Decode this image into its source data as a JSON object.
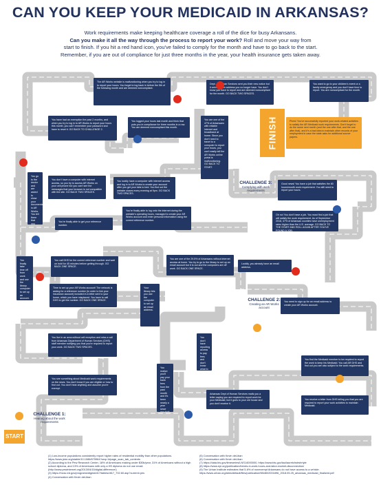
{
  "title": "CAN YOU KEEP YOUR MEDICAID IN ARKANSAS?",
  "intro": {
    "line1": "Work requirements make keeping healthcare coverage a roll of the dice for busy Arkansans.",
    "line2_bold": "Can you make it all the way through the process to report your work?",
    "line2_rest": " Roll and move your way from",
    "line3": "start to finish. If you hit a red hand icon, you've failed to comply for the month and have to go back to the start.",
    "line4": "Remember, if you are out of compliance for just three months in the year, your health insurance gets taken away."
  },
  "labels": {
    "start": "START",
    "finish": "FINISH",
    "challenge1_title": "CHALLENGE 1:",
    "challenge1_sub": "Hearing about the work requirements",
    "challenge2_title": "CHALLENGE 2:",
    "challenge2_sub": "Creating an AR Works account",
    "challenge3_title": "CHALLENGE 3:",
    "challenge3_sub": "Complying with work requirements"
  },
  "cards": {
    "c1": "The AR Works website is malfunctioning when you try to log in to report your hours. You forget to log back in before the 5th of the following month and are deemed noncompliant.",
    "c2": "Dept. of Human Services sent you their new notice but it arrived at an address you no longer have. You don't know you have to report and are deemed noncompliant for the month. GO BACK TWO SPACES.",
    "c3": "You want to go to your children's event or a family emergency and you don't have time to report. You are noncompliant for the month.",
    "c4": "You have had an exemption the past 2 months, and when you try to log in to AR Works to report your hours this month, you can't remember your password and have to reset it. GO BACK TO CHALLENGE 2.",
    "c5": "You logged your hours last month and think that puts you in compliance for three months in a row. You are deemed noncompliant this month.",
    "c6": "You are one of the 47% of Arkansans with reliable internet and broadband at home. Since you don't need to travel to a computer to report your hours, you can't easily tell the AR Works online portal is malfunctioning. GO BACK TO START.",
    "c7": "Phew! You've successfully reported your work-related activities to satisfy the AR Medicaid work requirements. Don't forget to do the same next month (and the one after that, and the one after that), and it's a bad idea to maintain other records of your employment in case the state asks for additional source papers.",
    "c8": "You're traveling to work and you get to your AR Works account before the deadline to report your hours.",
    "c9": "You don't have a computer with internet access, so you try to access AR Works on your cell phone but you can't see the messages that your browser is not compatible with the site. GO BACK TWO SPACES.",
    "c10": "You luckily have a computer with internet access and log in to AR Works to create your account after you get your kids to bed. You find out the website closes every evening at 9pm. GO BACK TWO SPACES.",
    "c11": "You're finally able to get your reference number.",
    "c12": "You're finally able to log onto the internet during the website's operating hours, managed to create your AR Works account and enter personal information using the correct reference number.",
    "c13": "Good news! You have a job that satisfies the 80 hours/month work requirement. You still need to report your hours.",
    "c14": "Oh no! You don't have a job. You must find a job that will satisfy the work requirement. As of September 2018, 47% of Arkansas counties have unemployment rates higher than the U.S. average. GO BACK TO THE START AND ROLL AGAIN AFTER YOU'VE FOUND A JOB.",
    "c15": "You call DHS for the correct reference number and wait on hold for 45 minutes before getting through. GO BACK ONE SPACE.",
    "c16": "You are one of the 29.5% of Arkansans without internet access at home. You try to go to the library to set up an email account but it is out and the computers are off work. GO BACK ONE SPACE.",
    "c17": "Luckily, you already have an email address.",
    "c18": "Time to set up your AR Works account! The network is asking for a reference number (in order to link your insurance account) included in a letter sent to your home, which you have misplaced. You have to call DHS to get the number. GO BACK ONE SPACE.",
    "c19": "You need to sign up for an email address to create your AR Works account.",
    "c20": "You live in an area without cell reception and miss a call from Arkansas Department of Human Services (DHS) staff member notifying you that you're required to report your work. GO BACK TWO SPACES.",
    "c21": "You see something about Medicaid work requirements on the news. You don't know if you are eligible or how to find out. You don't hear anything and assume you're exempt.",
    "c22": "You find the Medicaid member to be required to report the work to keep his Medicaid. You call AR DHS and find out you are also subject to the work requirements.",
    "c23": "Arkansas Dept of Human Services mails you a letter saying you are required to report work for your Medicaid, but it goes to your old house and you don't receive it.",
    "c24": "You receive a letter from DHS telling you that you are required to report your work activities to maintain Medicaid.",
    "v1": "You go to the doctor and are asked to show your documentation in AR Works. You tell them that you need to do it before you go, but they don't help you. GO BACK TWO SPACES.",
    "v2": "You finally take time off from work and use the library computer to set up an account. Inside you go to the library. GO BACK ONE SPACE.",
    "v3": "Your library lets you use the computer to set up an email address.",
    "v4": "You don't have reporting access to pay fees and don't know what to report and are deemed noncompliant.",
    "v5": "You realize you'll pay your bank fees from the past month and it's been nearly a year since you took action on your Medicaid."
  },
  "footnotes": {
    "left": [
      "(1) Low-income populations consistently report higher rates of residential mobility than other populations. https://www.jstor.org/stable/10.1086/675964?seq=1#page_scan_tab_contents",
      "(2) According to the Pew Research Center, 18% of Americans making under $30k/year, 31% of Americans without a high school diploma, and 13% of Americans with only a HS diploma do not use email. (http://www.pewinternet.org/2013/04/15/digital-difference/)",
      "(3) https://mcsc.ed.gov/programs/digest/d17/tables/dt17_702.60.asp?current=yes",
      "(4) Conversation with Kevin deLiban"
    ],
    "right": [
      "(5) Conversation with Kevin deLiban",
      "(6) Conversation with Kevin deLiban",
      "(7) https://data.bls.gov/timeseries/LNS14000000, https://www.bls.gov/lau/lauretchstrshrtyle",
      "(8) https://www.epi.org/publication/trends-in-work-hours-and-labor-market-disconnection/",
      "(9) The Urban Institute estimates that 5-6% of nonexempt Arkansans do not have access to a vehicle. https://www.urban.org/sites/default/files/publication/98480/2001896_2018.05.25_arkansas_medicaid_finalized.pdf"
    ]
  }
}
